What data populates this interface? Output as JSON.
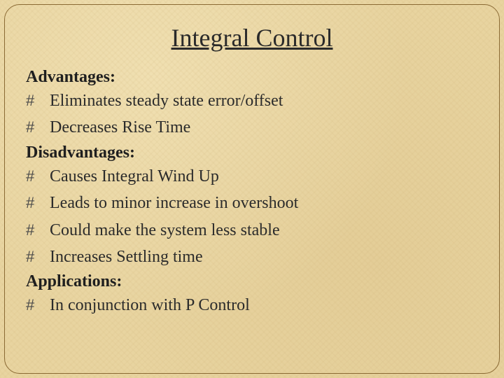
{
  "slide": {
    "title": "Integral Control",
    "background_color": "#e8d4a0",
    "frame_border_color": "#8a6a34",
    "title_color": "#2a2a2a",
    "text_color": "#2b2b2b",
    "title_fontsize": 36,
    "section_fontsize": 24,
    "bullet_fontsize": 24,
    "bullet_glyph": "#",
    "sections": {
      "advantages": {
        "label": "Advantages:",
        "items": [
          "Eliminates steady state error/offset",
          "Decreases Rise Time"
        ]
      },
      "disadvantages": {
        "label": "Disadvantages:",
        "items": [
          "Causes Integral Wind Up",
          "Leads to minor increase in overshoot",
          "Could make the system less stable",
          "Increases Settling time"
        ]
      },
      "applications": {
        "label": "Applications:",
        "items": [
          "In conjunction with P Control"
        ]
      }
    }
  }
}
